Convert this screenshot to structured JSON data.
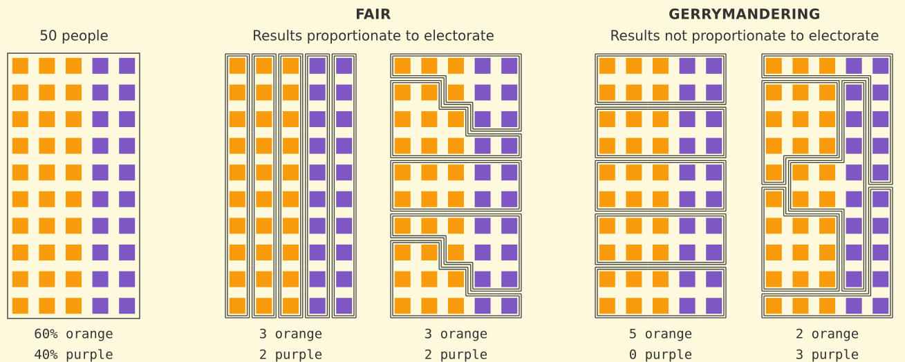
{
  "groups": [
    {
      "title": "FAIR",
      "subtitle": "Results proportionate to electorate"
    },
    {
      "title": "GERRYMANDERING",
      "subtitle": "Results not proportionate to electorate"
    }
  ],
  "panels": [
    {
      "heading": "50 people",
      "caption": [
        "60% orange",
        "40% purple"
      ]
    },
    {
      "caption": [
        "3 orange",
        "2 purple"
      ]
    },
    {
      "caption": [
        "3 orange",
        "2 purple"
      ]
    },
    {
      "caption": [
        "5 orange",
        "0 purple"
      ]
    },
    {
      "caption": [
        "2 orange",
        "3 purple"
      ]
    }
  ]
}
